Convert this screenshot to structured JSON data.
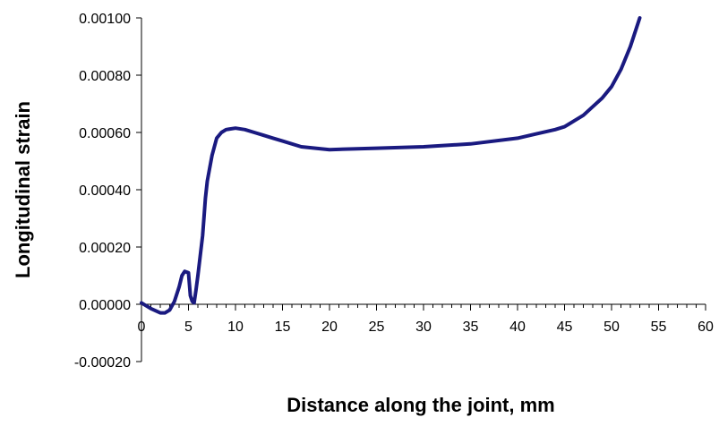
{
  "chart_data": {
    "type": "line",
    "title": "",
    "xlabel": "Distance along the joint, mm",
    "ylabel": "Longitudinal strain",
    "xlim": [
      0,
      60
    ],
    "ylim": [
      -0.0002,
      0.001
    ],
    "x_ticks": [
      0,
      5,
      10,
      15,
      20,
      25,
      30,
      35,
      40,
      45,
      50,
      55,
      60
    ],
    "x_tick_labels": [
      "0",
      "5",
      "10",
      "15",
      "20",
      "25",
      "30",
      "35",
      "40",
      "45",
      "50",
      "55",
      "60"
    ],
    "y_ticks": [
      -0.0002,
      0,
      0.0002,
      0.0004,
      0.0006,
      0.0008,
      0.001
    ],
    "y_tick_labels": [
      "-0.00020",
      "0.00000",
      "0.00020",
      "0.00040",
      "0.00060",
      "0.00080",
      "0.00100"
    ],
    "grid": false,
    "legend": "none",
    "series": [
      {
        "color": "#1a1a80",
        "x": [
          0,
          1,
          2,
          2.5,
          3,
          3.5,
          4,
          4.3,
          4.6,
          5,
          5.2,
          5.4,
          5.6,
          5.8,
          6,
          6.5,
          6.8,
          7,
          7.5,
          8,
          8.5,
          9,
          10,
          11,
          12,
          13,
          14,
          15,
          17,
          20,
          25,
          30,
          35,
          40,
          42,
          44,
          45,
          46,
          47,
          48,
          49,
          50,
          51,
          52,
          53
        ],
        "y": [
          5e-06,
          -1.5e-05,
          -3e-05,
          -3e-05,
          -2e-05,
          1e-05,
          6e-05,
          0.0001,
          0.000115,
          0.00011,
          3e-05,
          1e-05,
          5e-06,
          5e-05,
          0.0001,
          0.00024,
          0.00037,
          0.00043,
          0.00052,
          0.00058,
          0.0006,
          0.00061,
          0.000615,
          0.00061,
          0.0006,
          0.00059,
          0.00058,
          0.00057,
          0.00055,
          0.00054,
          0.000545,
          0.00055,
          0.00056,
          0.00058,
          0.000595,
          0.00061,
          0.00062,
          0.00064,
          0.00066,
          0.00069,
          0.00072,
          0.00076,
          0.00082,
          0.0009,
          0.001
        ]
      }
    ]
  }
}
